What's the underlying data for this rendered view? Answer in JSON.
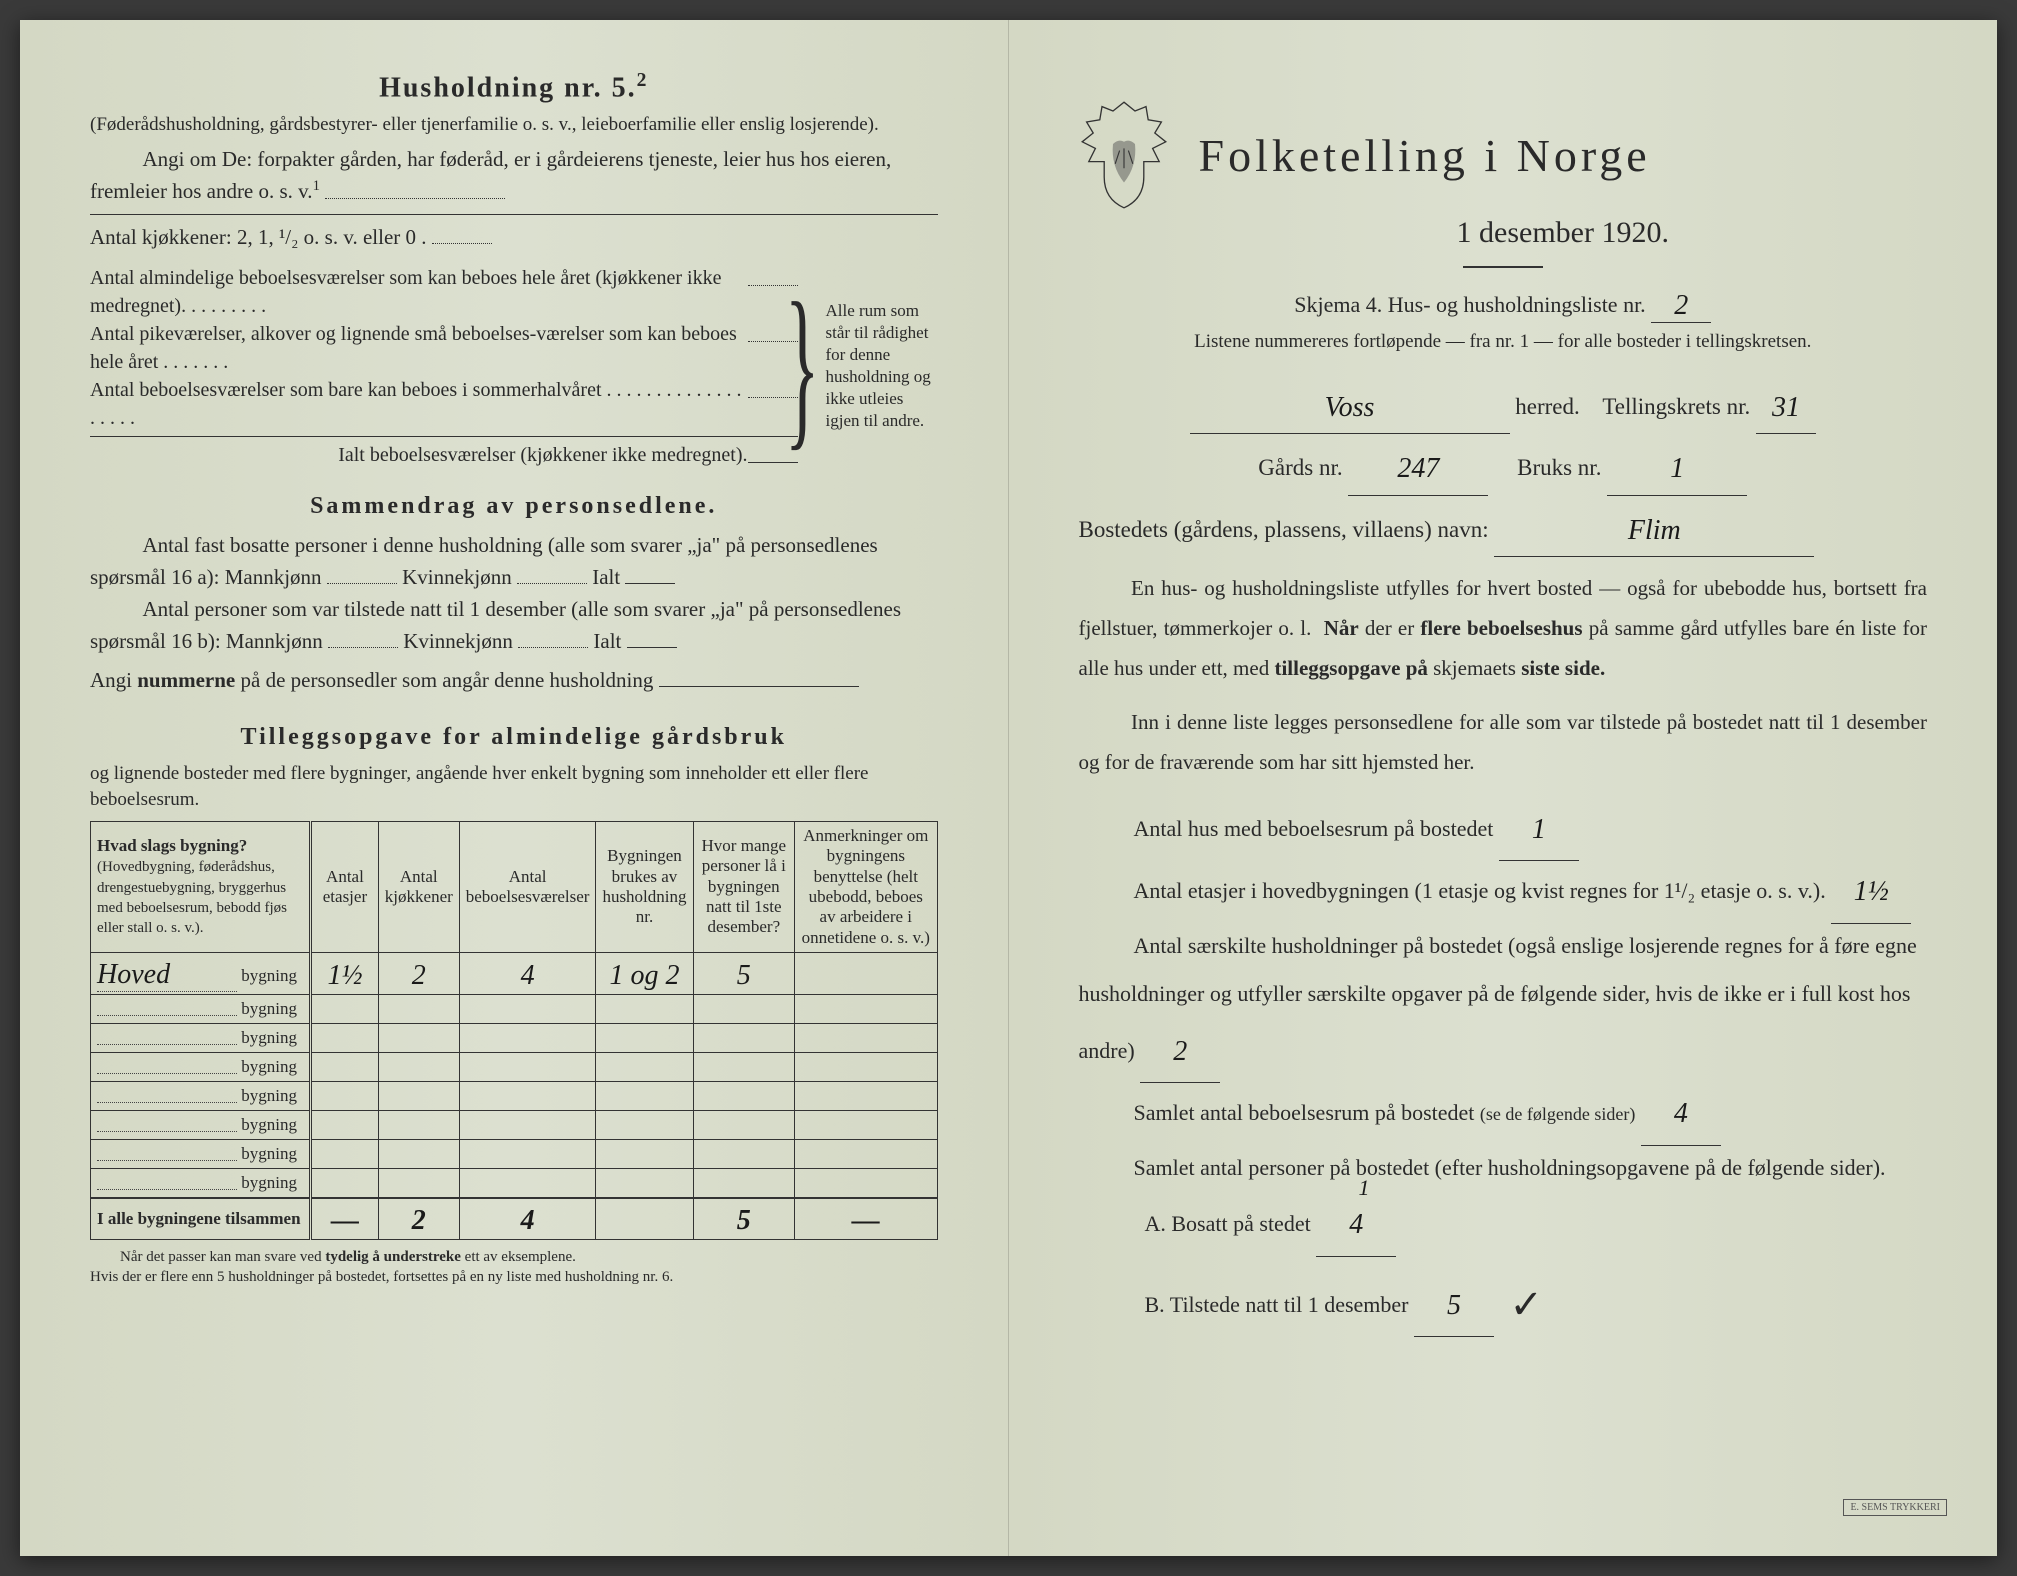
{
  "left": {
    "husholdning_title": "Husholdning nr. 5.",
    "husholdning_sup": "2",
    "husholdning_sub": "(Føderådshusholdning, gårdsbestyrer- eller tjenerfamilie o. s. v., leieboerfamilie eller enslig losjerende).",
    "angi_line": "Angi om De: forpakter gården, har føderåd, er i gårdeierens tjeneste, leier hus hos eieren, fremleier hos andre o. s. v.",
    "angi_sup": "1",
    "kjokken_line": "Antal kjøkkener: 2, 1, ¹/₂ o. s. v. eller 0 .",
    "rooms": [
      "Antal almindelige beboelsesværelser som kan beboes hele året (kjøkkener ikke medregnet). . . . . . . . .",
      "Antal pikeværelser, alkover og lignende små beboelses-værelser som kan beboes hele året . . . . . . .",
      "Antal beboelsesværelser som bare kan beboes i sommerhalvåret . . . . . . . . . . . . . . . . . . ."
    ],
    "ialt_line": "Ialt beboelsesværelser  (kjøkkener ikke medregnet).",
    "brace_note": "Alle rum som står til rådighet for denne husholdning og ikke utleies igjen til andre.",
    "sammendrag_title": "Sammendrag av personsedlene.",
    "sammendrag_p1": "Antal fast bosatte personer i denne husholdning (alle som svarer „ja\" på personsedlenes spørsmål 16 a): Mannkjønn",
    "kvinnekjonn": "Kvinnekjønn",
    "ialt": "Ialt",
    "sammendrag_p2": "Antal personer som var tilstede natt til 1 desember (alle som svarer „ja\" på personsedlenes spørsmål 16 b): Mannkjønn",
    "angi_nummer": "Angi nummerne på de personsedler som angår denne husholdning",
    "tillegg_title": "Tilleggsopgave for almindelige gårdsbruk",
    "tillegg_sub": "og lignende bosteder med flere bygninger, angående hver enkelt bygning som inneholder ett eller flere beboelsesrum.",
    "table": {
      "headers": [
        "Hvad slags bygning?\n(Hovedbygning, føderådshus, drengestuebygning, bryggerhus med beboelsesrum, bebodd fjøs eller stall o. s. v.).",
        "Antal etasjer",
        "Antal kjøkkener",
        "Antal beboelsesværelser",
        "Bygningen brukes av husholdning nr.",
        "Hvor mange personer lå i bygningen natt til 1ste desember?",
        "Anmerkninger om bygningens benyttelse (helt ubebodd, beboes av arbeidere i onnetidene o. s. v.)"
      ],
      "rows": [
        {
          "label": "Hoved",
          "suffix": "bygning",
          "cells": [
            "1½",
            "2",
            "4",
            "1 og 2",
            "5",
            ""
          ],
          "strike_col": 2
        },
        {
          "label": "",
          "suffix": "bygning",
          "cells": [
            "",
            "",
            "",
            "",
            "",
            ""
          ]
        },
        {
          "label": "",
          "suffix": "bygning",
          "cells": [
            "",
            "",
            "",
            "",
            "",
            ""
          ]
        },
        {
          "label": "",
          "suffix": "bygning",
          "cells": [
            "",
            "",
            "",
            "",
            "",
            ""
          ]
        },
        {
          "label": "",
          "suffix": "bygning",
          "cells": [
            "",
            "",
            "",
            "",
            "",
            ""
          ]
        },
        {
          "label": "",
          "suffix": "bygning",
          "cells": [
            "",
            "",
            "",
            "",
            "",
            ""
          ]
        },
        {
          "label": "",
          "suffix": "bygning",
          "cells": [
            "",
            "",
            "",
            "",
            "",
            ""
          ]
        },
        {
          "label": "",
          "suffix": "bygning",
          "cells": [
            "",
            "",
            "",
            "",
            "",
            ""
          ]
        }
      ],
      "total_label": "I alle bygningene tilsammen",
      "total_cells": [
        "—",
        "2",
        "4",
        "",
        "5",
        "—"
      ]
    },
    "footnote": "Når det passer kan man svare ved tydelig å understreke ett av eksemplene.\nHvis der er flere enn 5 husholdninger på bostedet, fortsettes på en ny liste med husholdning nr. 6."
  },
  "right": {
    "main_title": "Folketelling i Norge",
    "date": "1 desember 1920.",
    "skjema": "Skjema 4.   Hus- og husholdningsliste nr.",
    "skjema_val": "2",
    "instr": "Listene nummereres fortløpende — fra nr. 1 — for alle bosteder i tellingskretsen.",
    "herred_val": "Voss",
    "herred_lbl": "herred.",
    "tellingskrets_lbl": "Tellingskrets nr.",
    "tellingskrets_val": "31",
    "gards_lbl": "Gårds nr.",
    "gards_val": "247",
    "bruks_lbl": "Bruks nr.",
    "bruks_val": "1",
    "bosted_lbl": "Bostedets (gårdens, plassens, villaens) navn:",
    "bosted_val": "Flim",
    "para1": "En hus- og husholdningsliste utfylles for hvert bosted — også for ubebodde hus, bortsett fra fjellstuer, tømmerkojer o. l.  Når der er flere beboelseshus på samme gård utfylles bare én liste for alle hus under ett, med tilleggsopgave på skjemaets siste side.",
    "para2": "Inn i denne liste legges personsedlene for alle som var tilstede på bostedet natt til 1 desember og for de fraværende som har sitt hjemsted her.",
    "q1": "Antal hus med beboelsesrum på bostedet",
    "q1_val": "1",
    "q2a": "Antal etasjer i hovedbygningen (1 etasje og kvist regnes for 1¹/₂ etasje o. s. v.).",
    "q2_val": "1½",
    "q3": "Antal særskilte husholdninger på bostedet (også enslige losjerende regnes for å føre egne husholdninger og utfyller særskilte opgaver på de følgende sider, hvis de ikke er i full kost hos andre)",
    "q3_val": "2",
    "q4": "Samlet antal beboelsesrum på bostedet (se de følgende sider)",
    "q4_val": "4",
    "q5": "Samlet antal personer på bostedet (efter husholdningsopgavene på de følgende sider).",
    "qA": "A.  Bosatt på stedet",
    "qA_val": "4",
    "qA_extra": "1",
    "qB": "B.  Tilstede natt til 1 desember",
    "qB_val": "5",
    "stamp": "E. SEMS TRYKKERI"
  }
}
